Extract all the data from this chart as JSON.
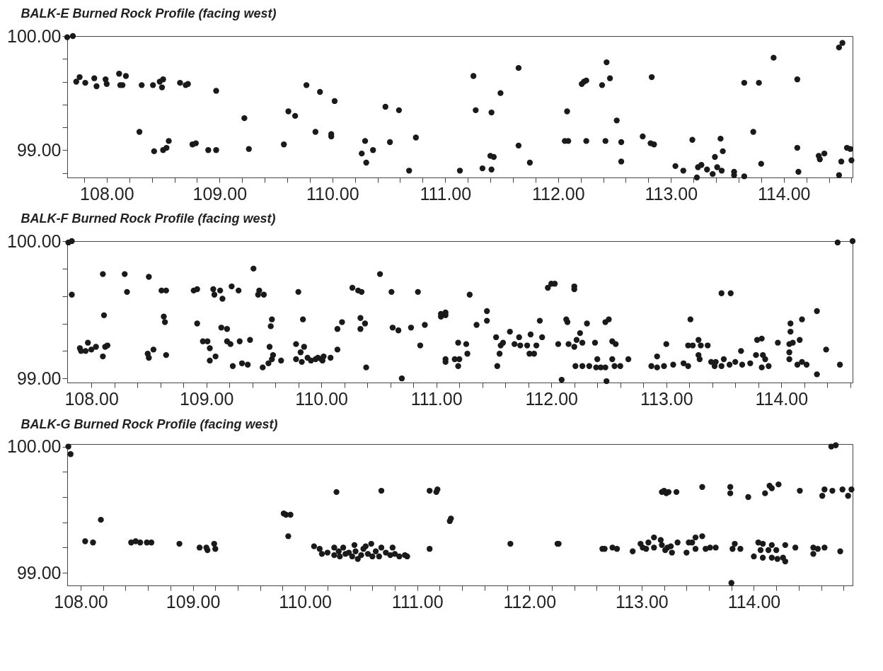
{
  "chart_data": [
    {
      "type": "scatter",
      "title": "BALK-E  Burned Rock Profile (facing west)",
      "marker": "circle",
      "xlim": [
        107.65,
        114.61
      ],
      "ylim": [
        98.76,
        100.0
      ],
      "xticks": [
        {
          "value": 107.8,
          "label": null
        },
        {
          "value": 108,
          "label": "108.00"
        },
        {
          "value": 108.2,
          "label": null
        },
        {
          "value": 108.4,
          "label": null
        },
        {
          "value": 108.6,
          "label": null
        },
        {
          "value": 108.8,
          "label": null
        },
        {
          "value": 109,
          "label": "109.00"
        },
        {
          "value": 109.2,
          "label": null
        },
        {
          "value": 109.4,
          "label": null
        },
        {
          "value": 109.6,
          "label": null
        },
        {
          "value": 109.8,
          "label": null
        },
        {
          "value": 110,
          "label": "110.00"
        },
        {
          "value": 110.2,
          "label": null
        },
        {
          "value": 110.4,
          "label": null
        },
        {
          "value": 110.6,
          "label": null
        },
        {
          "value": 110.8,
          "label": null
        },
        {
          "value": 111,
          "label": "111.00"
        },
        {
          "value": 111.2,
          "label": null
        },
        {
          "value": 111.4,
          "label": null
        },
        {
          "value": 111.6,
          "label": null
        },
        {
          "value": 111.8,
          "label": null
        },
        {
          "value": 112,
          "label": "112.00"
        },
        {
          "value": 112.2,
          "label": null
        },
        {
          "value": 112.4,
          "label": null
        },
        {
          "value": 112.6,
          "label": null
        },
        {
          "value": 112.8,
          "label": null
        },
        {
          "value": 113,
          "label": "113.00"
        },
        {
          "value": 113.2,
          "label": null
        },
        {
          "value": 113.4,
          "label": null
        },
        {
          "value": 113.6,
          "label": null
        },
        {
          "value": 113.8,
          "label": null
        },
        {
          "value": 114,
          "label": "114.00"
        },
        {
          "value": 114.2,
          "label": null
        },
        {
          "value": 114.4,
          "label": null
        },
        {
          "value": 114.6,
          "label": null
        }
      ],
      "yticks": [
        {
          "value": 98.8,
          "label": null
        },
        {
          "value": 99,
          "label": "99.00"
        },
        {
          "value": 99.2,
          "label": null
        },
        {
          "value": 99.4,
          "label": null
        },
        {
          "value": 99.6,
          "label": null
        },
        {
          "value": 99.8,
          "label": null
        },
        {
          "value": 100,
          "label": "100.00"
        }
      ],
      "series": [
        {
          "color": "#1a1a1a",
          "x": [
            107.65,
            107.7,
            107.73,
            107.76,
            107.81,
            107.89,
            107.91,
            107.99,
            108.0,
            108.11,
            108.12,
            108.14,
            108.17,
            108.31,
            108.41,
            108.47,
            108.5,
            108.49,
            108.65,
            108.7,
            108.72,
            108.97,
            108.29,
            108.42,
            108.5,
            108.53,
            108.55,
            108.76,
            108.79,
            108.9,
            108.97,
            109.22,
            109.26,
            109.57,
            109.61,
            109.67,
            109.77,
            109.85,
            109.89,
            109.99,
            109.99,
            110.02,
            110.26,
            110.29,
            110.3,
            110.36,
            110.47,
            110.51,
            110.59,
            110.68,
            110.74,
            111.13,
            111.25,
            111.27,
            111.33,
            111.41,
            111.41,
            111.4,
            111.43,
            111.49,
            111.65,
            111.65,
            111.75,
            112.06,
            112.09,
            112.08,
            112.21,
            112.23,
            112.25,
            112.25,
            112.39,
            112.42,
            112.43,
            112.46,
            112.52,
            112.56,
            112.56,
            112.75,
            112.83,
            112.82,
            112.85,
            113.04,
            113.11,
            113.19,
            113.23,
            113.24,
            113.27,
            113.32,
            113.37,
            113.39,
            113.41,
            113.45,
            113.44,
            113.46,
            113.56,
            113.56,
            113.65,
            113.65,
            113.73,
            113.78,
            113.8,
            113.91,
            114.12,
            114.12,
            114.13,
            114.31,
            114.32,
            114.36,
            114.49,
            114.52,
            114.49,
            114.51,
            114.56,
            114.59,
            114.6
          ],
          "values": [
            99.99,
            100.0,
            99.6,
            99.64,
            99.59,
            99.63,
            99.56,
            99.62,
            99.58,
            99.67,
            99.57,
            99.57,
            99.65,
            99.57,
            99.57,
            99.6,
            99.62,
            99.55,
            99.59,
            99.57,
            99.58,
            99.52,
            99.16,
            98.99,
            99.0,
            99.02,
            99.08,
            99.05,
            99.06,
            99.0,
            99.0,
            99.28,
            99.01,
            99.05,
            99.34,
            99.3,
            99.57,
            99.16,
            99.51,
            99.14,
            99.12,
            99.43,
            98.97,
            99.08,
            98.89,
            99.0,
            99.38,
            99.07,
            99.35,
            98.82,
            99.11,
            98.82,
            99.65,
            99.35,
            98.84,
            98.83,
            99.33,
            98.95,
            98.94,
            99.5,
            99.72,
            99.04,
            98.89,
            99.08,
            99.08,
            99.34,
            99.58,
            99.6,
            99.61,
            99.08,
            99.57,
            99.08,
            99.77,
            99.63,
            99.26,
            99.07,
            98.9,
            99.12,
            99.64,
            99.06,
            99.05,
            98.86,
            98.82,
            99.09,
            98.76,
            98.85,
            98.87,
            98.83,
            98.79,
            98.94,
            98.85,
            98.82,
            99.1,
            98.99,
            98.81,
            98.78,
            99.59,
            98.77,
            99.16,
            99.59,
            98.88,
            99.81,
            99.62,
            99.02,
            98.81,
            98.95,
            98.92,
            98.97,
            99.9,
            99.94,
            98.78,
            98.9,
            99.02,
            99.01,
            98.91
          ]
        }
      ]
    },
    {
      "type": "scatter",
      "title": "BALK-F  Burned Rock Profile (facing west)",
      "marker": "circle",
      "xlim": [
        107.79,
        114.62
      ],
      "ylim": [
        98.97,
        100.0
      ],
      "xticks": [
        {
          "value": 108,
          "label": "108.00"
        },
        {
          "value": 108.2,
          "label": null
        },
        {
          "value": 108.4,
          "label": null
        },
        {
          "value": 108.6,
          "label": null
        },
        {
          "value": 108.8,
          "label": null
        },
        {
          "value": 109,
          "label": "109.00"
        },
        {
          "value": 109.2,
          "label": null
        },
        {
          "value": 109.4,
          "label": null
        },
        {
          "value": 109.6,
          "label": null
        },
        {
          "value": 109.8,
          "label": null
        },
        {
          "value": 110,
          "label": "110.00"
        },
        {
          "value": 110.2,
          "label": null
        },
        {
          "value": 110.4,
          "label": null
        },
        {
          "value": 110.6,
          "label": null
        },
        {
          "value": 110.8,
          "label": null
        },
        {
          "value": 111,
          "label": "111.00"
        },
        {
          "value": 111.2,
          "label": null
        },
        {
          "value": 111.4,
          "label": null
        },
        {
          "value": 111.6,
          "label": null
        },
        {
          "value": 111.8,
          "label": null
        },
        {
          "value": 112,
          "label": "112.00"
        },
        {
          "value": 112.2,
          "label": null
        },
        {
          "value": 112.4,
          "label": null
        },
        {
          "value": 112.6,
          "label": null
        },
        {
          "value": 112.8,
          "label": null
        },
        {
          "value": 113,
          "label": "113.00"
        },
        {
          "value": 113.2,
          "label": null
        },
        {
          "value": 113.4,
          "label": null
        },
        {
          "value": 113.6,
          "label": null
        },
        {
          "value": 113.8,
          "label": null
        },
        {
          "value": 114,
          "label": "114.00"
        },
        {
          "value": 114.2,
          "label": null
        },
        {
          "value": 114.4,
          "label": null
        },
        {
          "value": 114.6,
          "label": null
        }
      ],
      "yticks": [
        {
          "value": 99,
          "label": "99.00"
        },
        {
          "value": 99.2,
          "label": null
        },
        {
          "value": 99.4,
          "label": null
        },
        {
          "value": 99.6,
          "label": null
        },
        {
          "value": 99.8,
          "label": null
        },
        {
          "value": 100,
          "label": "100.00"
        }
      ],
      "series": [
        {
          "color": "#1a1a1a",
          "x": [
            107.8,
            107.83,
            107.83,
            108.1,
            108.11,
            107.9,
            107.91,
            107.95,
            107.97,
            108.0,
            108.04,
            108.1,
            108.12,
            108.14,
            108.29,
            108.31,
            108.5,
            108.49,
            108.5,
            108.54,
            108.61,
            108.65,
            108.63,
            108.64,
            108.65,
            108.89,
            108.92,
            108.92,
            108.97,
            109.01,
            109.03,
            109.03,
            109.08,
            109.06,
            109.07,
            109.12,
            109.14,
            109.13,
            109.18,
            109.18,
            109.21,
            109.22,
            109.28,
            109.23,
            109.29,
            109.31,
            109.36,
            109.38,
            109.41,
            109.46,
            109.45,
            109.5,
            109.49,
            109.54,
            109.55,
            109.56,
            109.57,
            109.57,
            109.58,
            109.65,
            109.8,
            109.84,
            109.78,
            109.78,
            109.82,
            109.85,
            109.83,
            109.88,
            109.91,
            109.95,
            109.97,
            110.0,
            110.02,
            110.01,
            110.08,
            110.14,
            110.14,
            110.18,
            110.27,
            110.32,
            110.35,
            110.34,
            110.34,
            110.38,
            110.39,
            110.51,
            110.61,
            110.62,
            110.67,
            110.7,
            110.78,
            110.84,
            110.86,
            110.9,
            111.04,
            111.08,
            111.08,
            111.04,
            111.08,
            111.29,
            111.08,
            111.16,
            111.19,
            111.19,
            111.2,
            111.26,
            111.27,
            111.35,
            111.44,
            111.44,
            111.52,
            111.53,
            111.55,
            111.56,
            111.58,
            111.64,
            111.68,
            111.72,
            111.73,
            111.79,
            111.82,
            111.81,
            111.85,
            111.87,
            111.9,
            111.92,
            111.97,
            112.0,
            112.03,
            112.06,
            112.13,
            112.14,
            112.09,
            112.15,
            112.2,
            112.2,
            112.2,
            112.22,
            112.25,
            112.27,
            112.21,
            112.27,
            112.33,
            112.31,
            112.38,
            112.39,
            112.4,
            112.43,
            112.47,
            112.47,
            112.5,
            112.48,
            112.53,
            112.56,
            112.53,
            112.55,
            112.6,
            112.67,
            112.87,
            112.92,
            112.92,
            112.98,
            113.0,
            113.06,
            113.15,
            113.19,
            113.21,
            113.19,
            113.23,
            113.28,
            113.3,
            113.36,
            113.28,
            113.29,
            113.39,
            113.43,
            113.42,
            113.48,
            113.56,
            113.5,
            113.48,
            113.55,
            113.6,
            113.65,
            113.66,
            113.73,
            113.78,
            113.79,
            113.83,
            113.84,
            113.86,
            113.83,
            113.89,
            113.97,
            114.08,
            114.08,
            114.07,
            114.1,
            114.16,
            114.07,
            114.07,
            114.14,
            114.18,
            114.22,
            114.18,
            114.31,
            114.31,
            114.39,
            114.49,
            114.51,
            114.62
          ],
          "values": [
            99.99,
            100.0,
            99.61,
            99.76,
            99.46,
            99.22,
            99.2,
            99.2,
            99.26,
            99.21,
            99.23,
            99.16,
            99.23,
            99.24,
            99.76,
            99.63,
            99.74,
            99.18,
            99.15,
            99.21,
            99.64,
            99.64,
            99.45,
            99.41,
            99.17,
            99.64,
            99.65,
            99.4,
            99.27,
            99.27,
            99.22,
            99.13,
            99.16,
            99.65,
            99.61,
            99.64,
            99.58,
            99.37,
            99.36,
            99.27,
            99.25,
            99.67,
            99.64,
            99.09,
            99.27,
            99.11,
            99.1,
            99.28,
            99.8,
            99.64,
            99.61,
            99.61,
            99.08,
            99.11,
            99.23,
            99.38,
            99.43,
            99.14,
            99.17,
            99.13,
            99.63,
            99.43,
            99.25,
            99.14,
            99.19,
            99.23,
            99.12,
            99.15,
            99.13,
            99.14,
            99.15,
            99.14,
            99.16,
            99.13,
            99.15,
            99.21,
            99.36,
            99.41,
            99.66,
            99.64,
            99.63,
            99.44,
            99.36,
            99.4,
            99.08,
            99.76,
            99.63,
            99.37,
            99.35,
            99.0,
            99.37,
            99.63,
            99.24,
            99.39,
            99.45,
            99.46,
            99.12,
            99.47,
            99.48,
            99.61,
            99.14,
            99.14,
            99.26,
            99.09,
            99.14,
            99.25,
            99.18,
            99.39,
            99.49,
            99.42,
            99.3,
            99.09,
            99.18,
            99.24,
            99.26,
            99.34,
            99.25,
            99.3,
            99.24,
            99.24,
            99.32,
            99.18,
            99.18,
            99.24,
            99.42,
            99.3,
            99.66,
            99.69,
            99.69,
            99.25,
            99.43,
            99.41,
            98.99,
            99.25,
            99.23,
            99.67,
            99.65,
            99.28,
            99.33,
            99.26,
            99.09,
            99.09,
            99.09,
            99.4,
            99.26,
            99.08,
            99.14,
            99.08,
            99.08,
            99.41,
            99.43,
            98.98,
            99.27,
            99.25,
            99.14,
            99.09,
            99.09,
            99.14,
            99.09,
            99.08,
            99.16,
            99.09,
            99.25,
            99.1,
            99.11,
            99.09,
            99.43,
            99.24,
            99.24,
            99.28,
            99.24,
            99.24,
            99.17,
            99.14,
            99.12,
            99.12,
            99.09,
            99.62,
            99.62,
            99.14,
            99.09,
            99.1,
            99.12,
            99.2,
            99.1,
            99.11,
            99.17,
            99.28,
            99.29,
            99.17,
            99.14,
            99.08,
            99.09,
            99.26,
            99.4,
            99.34,
            99.25,
            99.26,
            99.28,
            99.19,
            99.14,
            99.1,
            99.12,
            99.1,
            99.43,
            99.49,
            99.03,
            99.21,
            99.99,
            99.1,
            100.0
          ]
        }
      ]
    },
    {
      "type": "scatter",
      "title": "BALK-G  Burned Rock Profile (facing west)",
      "marker": "circle",
      "xlim": [
        107.88,
        114.88
      ],
      "ylim": [
        98.9,
        100.02
      ],
      "xticks": [
        {
          "value": 108,
          "label": "108.00"
        },
        {
          "value": 108.2,
          "label": null
        },
        {
          "value": 108.4,
          "label": null
        },
        {
          "value": 108.6,
          "label": null
        },
        {
          "value": 108.8,
          "label": null
        },
        {
          "value": 109,
          "label": "109.00"
        },
        {
          "value": 109.2,
          "label": null
        },
        {
          "value": 109.4,
          "label": null
        },
        {
          "value": 109.6,
          "label": null
        },
        {
          "value": 109.8,
          "label": null
        },
        {
          "value": 110,
          "label": "110.00"
        },
        {
          "value": 110.2,
          "label": null
        },
        {
          "value": 110.4,
          "label": null
        },
        {
          "value": 110.6,
          "label": null
        },
        {
          "value": 110.8,
          "label": null
        },
        {
          "value": 111,
          "label": "111.00"
        },
        {
          "value": 111.2,
          "label": null
        },
        {
          "value": 111.4,
          "label": null
        },
        {
          "value": 111.6,
          "label": null
        },
        {
          "value": 111.8,
          "label": null
        },
        {
          "value": 112,
          "label": "112.00"
        },
        {
          "value": 112.2,
          "label": null
        },
        {
          "value": 112.4,
          "label": null
        },
        {
          "value": 112.6,
          "label": null
        },
        {
          "value": 112.8,
          "label": null
        },
        {
          "value": 113,
          "label": "113.00"
        },
        {
          "value": 113.2,
          "label": null
        },
        {
          "value": 113.4,
          "label": null
        },
        {
          "value": 113.6,
          "label": null
        },
        {
          "value": 113.8,
          "label": null
        },
        {
          "value": 114,
          "label": "114.00"
        },
        {
          "value": 114.2,
          "label": null
        },
        {
          "value": 114.4,
          "label": null
        },
        {
          "value": 114.6,
          "label": null
        },
        {
          "value": 114.8,
          "label": null
        }
      ],
      "yticks": [
        {
          "value": 99,
          "label": "99.00"
        },
        {
          "value": 99.2,
          "label": null
        },
        {
          "value": 99.4,
          "label": null
        },
        {
          "value": 99.6,
          "label": null
        },
        {
          "value": 99.8,
          "label": null
        },
        {
          "value": 100,
          "label": "100.00"
        }
      ],
      "series": [
        {
          "color": "#1a1a1a",
          "x": [
            107.89,
            107.91,
            108.04,
            108.11,
            108.18,
            108.45,
            108.49,
            108.53,
            108.59,
            108.63,
            108.88,
            109.06,
            109.12,
            109.13,
            109.19,
            109.2,
            109.81,
            109.83,
            109.87,
            109.85,
            110.08,
            110.13,
            110.15,
            110.2,
            110.26,
            110.28,
            110.26,
            110.3,
            110.31,
            110.34,
            110.36,
            110.39,
            110.42,
            110.44,
            110.45,
            110.47,
            110.5,
            110.52,
            110.54,
            110.56,
            110.59,
            110.6,
            110.63,
            110.66,
            110.68,
            110.68,
            110.72,
            110.76,
            110.78,
            110.8,
            110.84,
            110.89,
            110.91,
            111.11,
            111.11,
            111.17,
            111.29,
            111.18,
            111.3,
            111.83,
            112.25,
            112.26,
            112.65,
            112.67,
            112.74,
            112.78,
            112.92,
            112.99,
            113.01,
            113.04,
            113.06,
            113.11,
            113.11,
            113.17,
            113.18,
            113.2,
            113.18,
            113.22,
            113.24,
            113.31,
            113.21,
            113.23,
            113.26,
            113.27,
            113.32,
            113.4,
            113.42,
            113.45,
            113.48,
            113.48,
            113.54,
            113.54,
            113.57,
            113.61,
            113.66,
            113.79,
            113.79,
            113.81,
            113.83,
            113.88,
            113.8,
            113.95,
            114.0,
            114.04,
            114.08,
            114.06,
            114.08,
            114.1,
            114.14,
            114.16,
            114.22,
            114.16,
            114.13,
            114.16,
            114.2,
            114.21,
            114.26,
            114.28,
            114.28,
            114.37,
            114.41,
            114.53,
            114.53,
            114.57,
            114.63,
            114.61,
            114.63,
            114.7,
            114.69,
            114.73,
            114.77,
            114.79,
            114.84,
            114.87
          ],
          "values": [
            100.0,
            99.94,
            99.25,
            99.24,
            99.42,
            99.24,
            99.25,
            99.24,
            99.24,
            99.24,
            99.23,
            99.2,
            99.2,
            99.18,
            99.23,
            99.19,
            99.47,
            99.46,
            99.46,
            99.29,
            99.21,
            99.19,
            99.15,
            99.16,
            99.2,
            99.64,
            99.14,
            99.17,
            99.13,
            99.2,
            99.15,
            99.16,
            99.13,
            99.22,
            99.17,
            99.11,
            99.14,
            99.19,
            99.21,
            99.15,
            99.23,
            99.13,
            99.17,
            99.13,
            99.65,
            99.2,
            99.16,
            99.14,
            99.2,
            99.15,
            99.13,
            99.14,
            99.13,
            99.19,
            99.65,
            99.64,
            99.41,
            99.66,
            99.43,
            99.23,
            99.23,
            99.23,
            99.19,
            99.19,
            99.2,
            99.19,
            99.17,
            99.23,
            99.2,
            99.19,
            99.24,
            99.28,
            99.2,
            99.26,
            99.22,
            99.65,
            99.64,
            99.63,
            99.64,
            99.64,
            99.18,
            99.2,
            99.21,
            99.16,
            99.24,
            99.16,
            99.24,
            99.24,
            99.28,
            99.19,
            99.29,
            99.68,
            99.19,
            99.2,
            99.2,
            99.68,
            99.63,
            99.19,
            99.23,
            99.19,
            98.92,
            99.6,
            99.13,
            99.24,
            99.23,
            99.18,
            99.12,
            99.63,
            99.69,
            99.67,
            99.7,
            99.22,
            99.18,
            99.12,
            99.18,
            99.11,
            99.12,
            99.09,
            99.22,
            99.2,
            99.65,
            99.2,
            99.15,
            99.19,
            99.2,
            99.61,
            99.66,
            99.65,
            100.0,
            100.01,
            99.17,
            99.66,
            99.61,
            99.66
          ]
        }
      ]
    }
  ]
}
